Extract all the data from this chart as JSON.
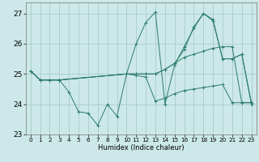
{
  "xlabel": "Humidex (Indice chaleur)",
  "bg_color": "#cce8e8",
  "grid_color": "#aacccc",
  "line_color": "#2d7d6b",
  "xlim": [
    -0.5,
    23.5
  ],
  "ylim": [
    23.0,
    27.35
  ],
  "yticks": [
    23,
    24,
    25,
    26,
    27
  ],
  "xticks": [
    0,
    1,
    2,
    3,
    4,
    5,
    6,
    7,
    8,
    9,
    10,
    11,
    12,
    13,
    14,
    15,
    16,
    17,
    18,
    19,
    20,
    21,
    22,
    23
  ],
  "series1_x": [
    0,
    1,
    2,
    3,
    4,
    5,
    6,
    7,
    8,
    9,
    10,
    11,
    12,
    13,
    14,
    15,
    16,
    17,
    18,
    19,
    20,
    21,
    22,
    23
  ],
  "series1_y": [
    25.1,
    24.8,
    24.8,
    24.8,
    24.4,
    23.75,
    23.7,
    23.3,
    24.0,
    23.6,
    25.0,
    26.0,
    26.7,
    27.05,
    24.0,
    25.3,
    25.9,
    26.5,
    27.0,
    26.8,
    25.5,
    25.5,
    25.65,
    24.0
  ],
  "series2_x": [
    0,
    1,
    2,
    3,
    10,
    11,
    12,
    13,
    14,
    15,
    16,
    17,
    18,
    19,
    20,
    21,
    22,
    23
  ],
  "series2_y": [
    25.1,
    24.8,
    24.8,
    24.8,
    25.0,
    24.95,
    24.9,
    24.1,
    24.2,
    24.35,
    24.45,
    24.5,
    24.55,
    24.6,
    24.65,
    24.05,
    24.05,
    24.05
  ],
  "series3_x": [
    0,
    1,
    2,
    3,
    10,
    11,
    12,
    13,
    14,
    15,
    16,
    17,
    18,
    19,
    20,
    21,
    22,
    23
  ],
  "series3_y": [
    25.1,
    24.8,
    24.8,
    24.8,
    25.0,
    25.0,
    25.0,
    25.0,
    25.15,
    25.35,
    25.55,
    25.65,
    25.75,
    25.85,
    25.9,
    25.9,
    24.05,
    24.05
  ],
  "series4_x": [
    0,
    1,
    2,
    3,
    10,
    11,
    12,
    13,
    14,
    15,
    16,
    17,
    18,
    19,
    20,
    21,
    22,
    23
  ],
  "series4_y": [
    25.1,
    24.8,
    24.8,
    24.8,
    25.0,
    25.0,
    25.0,
    25.0,
    25.15,
    25.35,
    25.8,
    26.55,
    27.0,
    26.75,
    25.5,
    25.5,
    25.65,
    24.05
  ]
}
